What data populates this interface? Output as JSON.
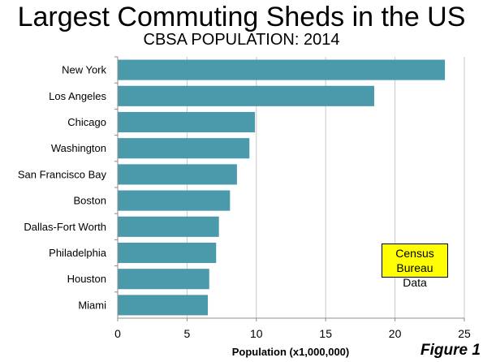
{
  "chart_data": {
    "type": "bar",
    "orientation": "horizontal",
    "title": "Largest Commuting Sheds in the US",
    "subtitle": "CBSA POPULATION: 2014",
    "categories": [
      "New York",
      "Los Angeles",
      "Chicago",
      "Washington",
      "San Francisco Bay",
      "Boston",
      "Dallas-Fort Worth",
      "Philadelphia",
      "Houston",
      "Miami"
    ],
    "values": [
      23.6,
      18.5,
      9.9,
      9.5,
      8.6,
      8.1,
      7.3,
      7.1,
      6.6,
      6.5
    ],
    "xlabel": "Population (x1,000,000)",
    "ylabel": "",
    "xlim": [
      0,
      25
    ],
    "xticks": [
      0,
      5,
      10,
      15,
      20,
      25
    ],
    "grid": "vertical",
    "bar_color": "#4a9aab"
  },
  "note": {
    "line1": "Census Bureau",
    "line2": "Data"
  },
  "figure_label": "Figure 1"
}
